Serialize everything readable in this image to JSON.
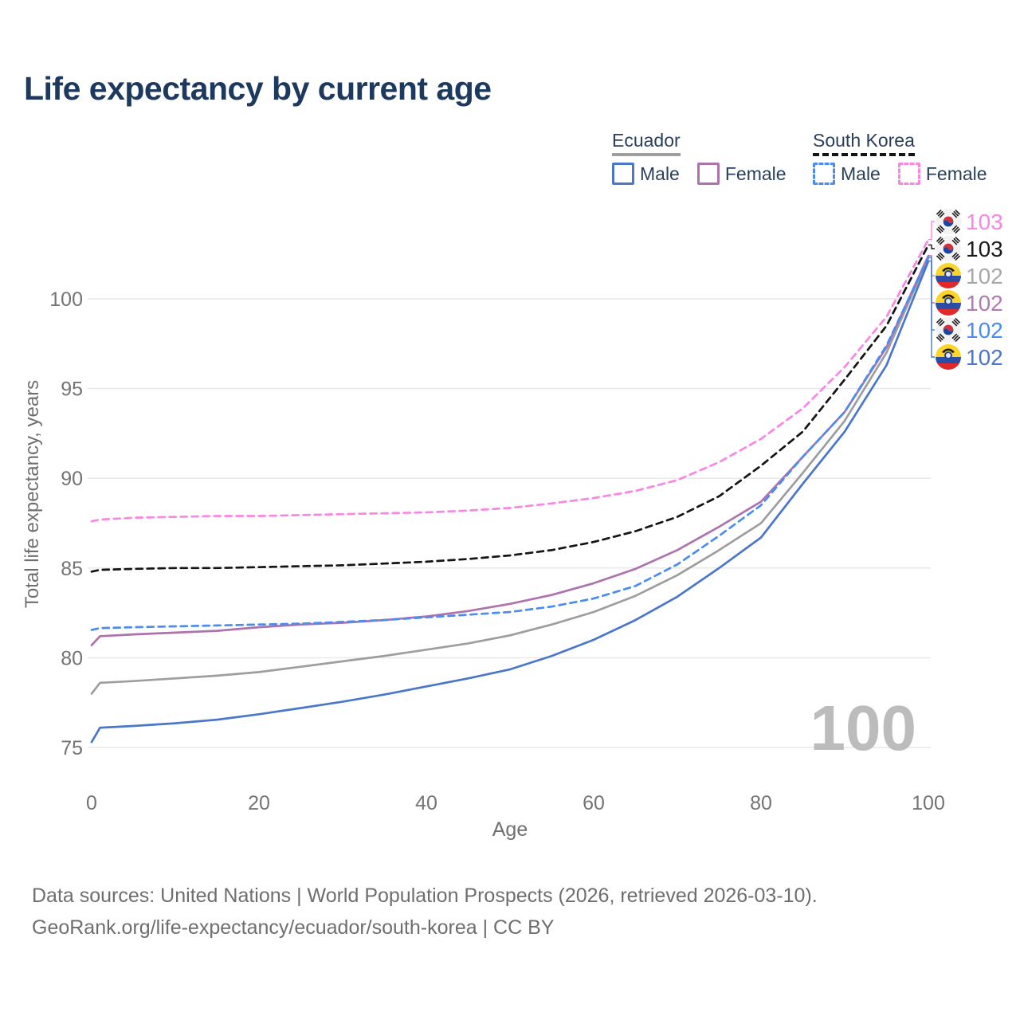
{
  "title": "Life expectancy by current age",
  "legend": {
    "groups": [
      {
        "label": "Ecuador",
        "underline_color": "#9e9e9e",
        "underline_style": "solid",
        "items": [
          {
            "label": "Male",
            "color": "#4a77c9",
            "style": "solid"
          },
          {
            "label": "Female",
            "color": "#ae72ad",
            "style": "solid"
          }
        ]
      },
      {
        "label": "South Korea",
        "underline_color": "#141414",
        "underline_style": "dashed",
        "items": [
          {
            "label": "Male",
            "color": "#4a8cf0",
            "style": "dashed"
          },
          {
            "label": "Female",
            "color": "#fb85e3",
            "style": "dashed"
          }
        ]
      }
    ]
  },
  "chart_data": {
    "type": "line",
    "title": "Life expectancy by current age",
    "xlabel": "Age",
    "ylabel": "Total life expectancy, years",
    "x_ticks": [
      0,
      20,
      40,
      60,
      80,
      100
    ],
    "y_ticks": [
      75,
      80,
      85,
      90,
      95,
      100
    ],
    "xlim": [
      0,
      100
    ],
    "ylim": [
      75,
      100
    ],
    "grid": "horizontal",
    "legend_position": "top-right",
    "x": [
      0,
      1,
      5,
      10,
      15,
      20,
      25,
      30,
      35,
      40,
      45,
      50,
      55,
      60,
      65,
      70,
      75,
      80,
      85,
      90,
      95,
      100
    ],
    "series": [
      {
        "name": "South Korea Female",
        "country": "south-korea",
        "sex": "female",
        "color": "#fb85e3",
        "label_color": "#fb85e3",
        "dashed": true,
        "end_label": "103",
        "values": [
          87.6,
          87.7,
          87.8,
          87.85,
          87.9,
          87.9,
          87.95,
          88.0,
          88.05,
          88.1,
          88.2,
          88.35,
          88.6,
          88.9,
          89.3,
          89.9,
          90.9,
          92.2,
          93.9,
          96.2,
          99.0,
          103.3
        ]
      },
      {
        "name": "South Korea Both sexes",
        "country": "south-korea",
        "sex": "both",
        "color": "#141414",
        "label_color": "#1a1a1a",
        "dashed": true,
        "end_label": "103",
        "values": [
          84.8,
          84.9,
          84.95,
          85.0,
          85.0,
          85.05,
          85.1,
          85.15,
          85.25,
          85.35,
          85.5,
          85.7,
          86.0,
          86.45,
          87.05,
          87.85,
          89.0,
          90.7,
          92.6,
          95.5,
          98.5,
          103.0
        ]
      },
      {
        "name": "Ecuador Both sexes",
        "country": "ecuador",
        "sex": "both",
        "color": "#9e9e9e",
        "label_color": "#a8a8a8",
        "dashed": false,
        "end_label": "102",
        "values": [
          78.0,
          78.6,
          78.7,
          78.85,
          79.0,
          79.2,
          79.5,
          79.8,
          80.1,
          80.45,
          80.8,
          81.25,
          81.85,
          82.55,
          83.45,
          84.6,
          86.0,
          87.5,
          90.3,
          93.2,
          97.0,
          102.3
        ]
      },
      {
        "name": "Ecuador Female",
        "country": "ecuador",
        "sex": "female",
        "color": "#ae72ad",
        "label_color": "#b07ab2",
        "dashed": false,
        "end_label": "102",
        "values": [
          80.7,
          81.2,
          81.3,
          81.4,
          81.5,
          81.7,
          81.85,
          81.95,
          82.1,
          82.3,
          82.6,
          83.0,
          83.5,
          84.15,
          84.95,
          86.0,
          87.3,
          88.7,
          91.2,
          93.7,
          97.3,
          102.4
        ]
      },
      {
        "name": "South Korea Male",
        "country": "south-korea",
        "sex": "male",
        "color": "#4a8cf0",
        "label_color": "#4a8cf0",
        "dashed": true,
        "end_label": "102",
        "values": [
          81.55,
          81.65,
          81.7,
          81.75,
          81.8,
          81.85,
          81.9,
          82.0,
          82.1,
          82.25,
          82.4,
          82.55,
          82.85,
          83.3,
          84.0,
          85.2,
          86.8,
          88.5,
          91.2,
          93.7,
          97.4,
          102.3
        ]
      },
      {
        "name": "Ecuador Male",
        "country": "ecuador",
        "sex": "male",
        "color": "#4a77c9",
        "label_color": "#4a77c9",
        "dashed": false,
        "end_label": "102",
        "values": [
          75.3,
          76.1,
          76.2,
          76.35,
          76.55,
          76.85,
          77.2,
          77.55,
          77.95,
          78.4,
          78.85,
          79.35,
          80.1,
          81.0,
          82.1,
          83.4,
          85.0,
          86.7,
          89.7,
          92.6,
          96.3,
          102.1
        ]
      }
    ]
  },
  "end_labels": [
    {
      "flag": "south-korea-flag-icon",
      "value": "103",
      "color": "#fb85e3"
    },
    {
      "flag": "south-korea-flag-icon",
      "value": "103",
      "color": "#1a1a1a"
    },
    {
      "flag": "ecuador-flag-icon",
      "value": "102",
      "color": "#a8a8a8"
    },
    {
      "flag": "ecuador-flag-icon",
      "value": "102",
      "color": "#b07ab2"
    },
    {
      "flag": "south-korea-flag-icon",
      "value": "102",
      "color": "#4a8cf0"
    },
    {
      "flag": "ecuador-flag-icon",
      "value": "102",
      "color": "#4a77c9"
    }
  ],
  "watermark": "100",
  "axis_colors": {
    "tick_text": "#747474",
    "axis_title": "#6f6f6f",
    "gridline": "#e7e7e7",
    "watermark": "#bcbcbc"
  },
  "footer": {
    "line1": "Data sources: United Nations | World Population Prospects (2026, retrieved 2026-03-10).",
    "line2": "GeoRank.org/life-expectancy/ecuador/south-korea | CC BY"
  }
}
